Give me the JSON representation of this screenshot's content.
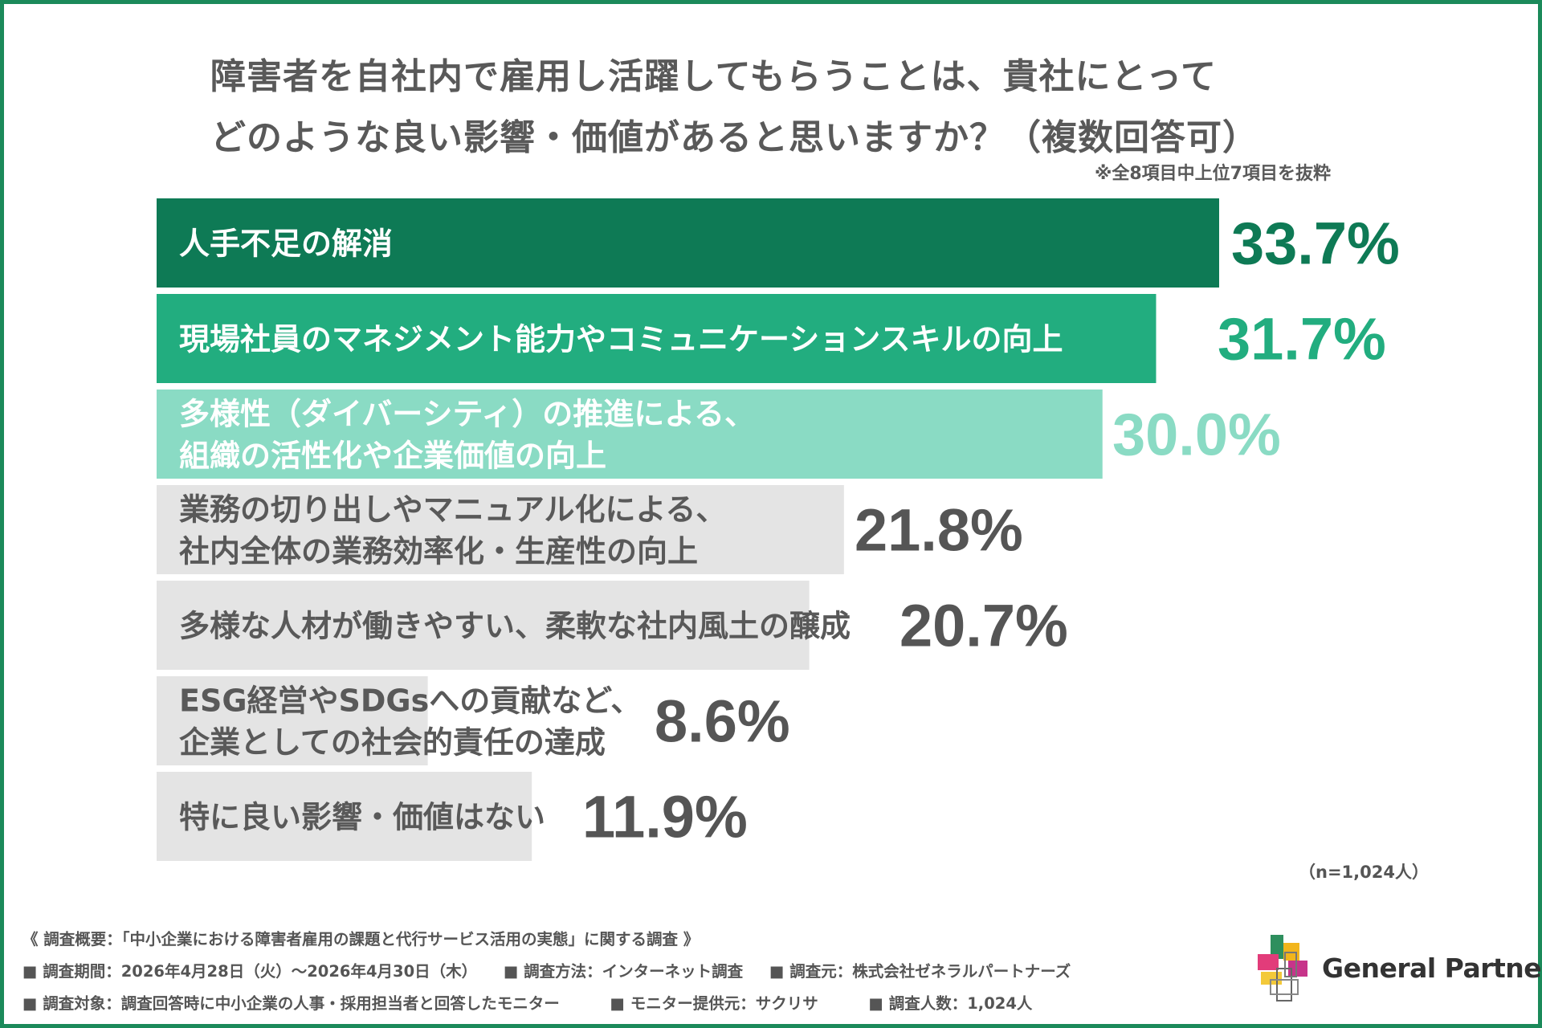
{
  "title_lines": [
    "障害者を自社内で雇用し活躍してもらうことは、貴社にとって",
    "どのような良い影響・価値があると思いますか？（複数回答可）"
  ],
  "note": "※全8項目中上位7項目を抜粋",
  "sample_size": "（n=1,024人）",
  "colors": {
    "frame": "#1b8a5a",
    "bar_1": "#0e7a55",
    "bar_2": "#22ad7f",
    "bar_3": "#8adbc4",
    "bar_gray": "#e4e4e4",
    "value_1": "#0e7a55",
    "value_2": "#22ad7f",
    "value_3": "#8adbc4",
    "value_gray": "#555555"
  },
  "chart_data": {
    "type": "bar",
    "orientation": "horizontal",
    "categories": [
      [
        "人手不足の解消"
      ],
      [
        "現場社員のマネジメント能力やコミュニケーションスキルの向上"
      ],
      [
        "多様性（ダイバーシティ）の推進による、",
        "組織の活性化や企業価値の向上"
      ],
      [
        "業務の切り出しやマニュアル化による、",
        "社内全体の業務効率化・生産性の向上"
      ],
      [
        "多様な人材が働きやすい、柔軟な社内風土の醸成"
      ],
      [
        "ESG経営やSDGsへの貢献など、",
        "企業としての社会的責任の達成"
      ],
      [
        "特に良い影響・価値はない"
      ]
    ],
    "values": [
      33.7,
      31.7,
      30.0,
      21.8,
      20.7,
      8.6,
      11.9
    ],
    "value_labels": [
      "33.7%",
      "31.7%",
      "30.0%",
      "21.8%",
      "20.7%",
      "8.6%",
      "11.9%"
    ],
    "unit": "%"
  },
  "survey": {
    "heading": "《 調査概要：「中小企業における障害者雇用の課題と代行サービス活用の実態」に関する調査 》",
    "row2": [
      "■ 調査期間：2026年4月28日（火）～2026年4月30日（木）",
      "■ 調査方法：インターネット調査",
      "■ 調査元：株式会社ゼネラルパートナーズ"
    ],
    "row3": [
      "■ 調査対象：調査回答時に中小企業の人事・採用担当者と回答したモニター",
      "■ モニター提供元：サクリサ",
      "■ 調査人数：1,024人"
    ]
  },
  "logo": {
    "text": "General Partners"
  }
}
